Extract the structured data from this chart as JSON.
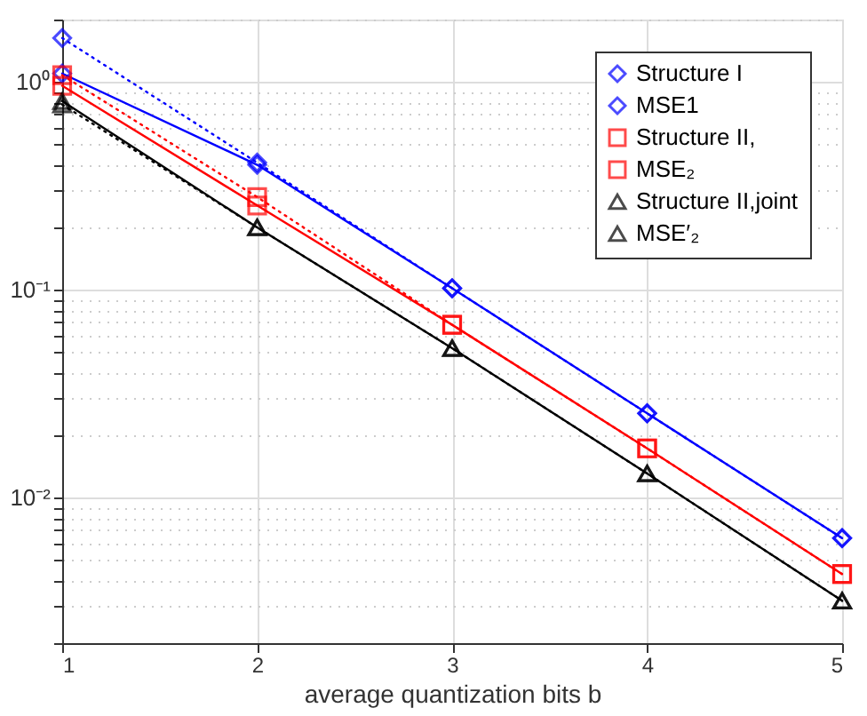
{
  "chart_data": {
    "type": "line",
    "xlabel": "average quantization bits b",
    "x": [
      1,
      2,
      3,
      4,
      5
    ],
    "series": [
      {
        "name": "Structure I",
        "color": "#0000ff",
        "marker": "diamond",
        "line_style": "solid",
        "values": [
          1.1,
          0.4,
          0.102,
          0.0255,
          0.0064
        ]
      },
      {
        "name": "MSE1",
        "color": "#0000ff",
        "marker": "diamond",
        "line_style": "dotted",
        "values": [
          1.63,
          0.41,
          0.102,
          0.0255,
          0.0064
        ]
      },
      {
        "name": "Structure II,",
        "color": "#ff0000",
        "marker": "square",
        "line_style": "solid",
        "values": [
          0.96,
          0.255,
          0.068,
          0.0173,
          0.0043
        ]
      },
      {
        "name": "MSE₂",
        "color": "#ff0000",
        "marker": "square",
        "line_style": "dotted",
        "values": [
          1.08,
          0.28,
          0.068,
          0.0173,
          0.0043
        ]
      },
      {
        "name": "Structure II,joint",
        "color": "#000000",
        "marker": "triangle",
        "line_style": "solid",
        "values": [
          0.81,
          0.2,
          0.0525,
          0.0131,
          0.0032
        ]
      },
      {
        "name": "MSE′₂",
        "color": "#000000",
        "marker": "triangle",
        "line_style": "dotted",
        "values": [
          0.78,
          0.2,
          0.0525,
          0.0131,
          0.0032
        ]
      }
    ],
    "log": "y",
    "xlim": [
      1,
      5
    ],
    "xticks": [
      1,
      2,
      3,
      4,
      5
    ],
    "ylim": [
      0.002,
      2
    ],
    "yticks": [
      {
        "value": 0.002,
        "label": null
      },
      {
        "value": 0.003,
        "label": null
      },
      {
        "value": 0.004,
        "label": null
      },
      {
        "value": 0.005,
        "label": null
      },
      {
        "value": 0.006,
        "label": null
      },
      {
        "value": 0.007,
        "label": null
      },
      {
        "value": 0.008,
        "label": null
      },
      {
        "value": 0.009,
        "label": null
      },
      {
        "value": 0.01,
        "label": "10⁻²"
      },
      {
        "value": 0.02,
        "label": null
      },
      {
        "value": 0.03,
        "label": null
      },
      {
        "value": 0.04,
        "label": null
      },
      {
        "value": 0.05,
        "label": null
      },
      {
        "value": 0.06,
        "label": null
      },
      {
        "value": 0.07,
        "label": null
      },
      {
        "value": 0.08,
        "label": null
      },
      {
        "value": 0.09,
        "label": null
      },
      {
        "value": 0.1,
        "label": "10⁻¹"
      },
      {
        "value": 0.2,
        "label": null
      },
      {
        "value": 0.3,
        "label": null
      },
      {
        "value": 0.4,
        "label": null
      },
      {
        "value": 0.5,
        "label": null
      },
      {
        "value": 0.6,
        "label": null
      },
      {
        "value": 0.7,
        "label": null
      },
      {
        "value": 0.8,
        "label": null
      },
      {
        "value": 0.9,
        "label": null
      },
      {
        "value": 1,
        "label": "10⁰"
      },
      {
        "value": 2,
        "label": null
      }
    ],
    "grid": true,
    "legend": "top right"
  }
}
